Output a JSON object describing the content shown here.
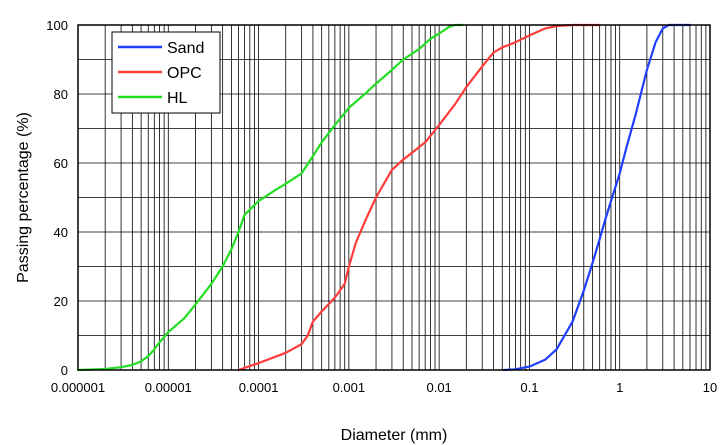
{
  "chart_data": {
    "type": "line",
    "xlabel": "Diameter (mm)",
    "ylabel": "Passing percentage (%)",
    "x_scale": "log",
    "xlim": [
      1e-06,
      10
    ],
    "ylim": [
      0,
      100
    ],
    "x_tick_values": [
      1e-06,
      1e-05,
      0.0001,
      0.001,
      0.01,
      0.1,
      1,
      10
    ],
    "x_tick_labels": [
      "0.000001",
      "0.00001",
      "0.0001",
      "0.001",
      "0.01",
      "0.1",
      "1",
      "10"
    ],
    "y_tick_values": [
      0,
      20,
      40,
      60,
      80,
      100
    ],
    "y_tick_labels": [
      "0",
      "20",
      "40",
      "60",
      "80",
      "100"
    ],
    "grid": true,
    "legend_position": "top-left",
    "series": [
      {
        "name": "Sand",
        "color": "#1f3fff",
        "points": [
          [
            0.052,
            0
          ],
          [
            0.07,
            0.2
          ],
          [
            0.1,
            1
          ],
          [
            0.15,
            3
          ],
          [
            0.2,
            6
          ],
          [
            0.3,
            14
          ],
          [
            0.4,
            23
          ],
          [
            0.5,
            31
          ],
          [
            0.6,
            38
          ],
          [
            0.7,
            44
          ],
          [
            0.8,
            49
          ],
          [
            1.0,
            57
          ],
          [
            1.2,
            65
          ],
          [
            1.5,
            74
          ],
          [
            2.0,
            87
          ],
          [
            2.5,
            95
          ],
          [
            3.0,
            99
          ],
          [
            3.5,
            100
          ],
          [
            6.0,
            100
          ]
        ]
      },
      {
        "name": "OPC",
        "color": "#ff3b3b",
        "points": [
          [
            6e-05,
            0
          ],
          [
            0.0001,
            2
          ],
          [
            0.0002,
            5
          ],
          [
            0.0003,
            7.5
          ],
          [
            0.00035,
            10
          ],
          [
            0.0004,
            14
          ],
          [
            0.0005,
            17
          ],
          [
            0.0007,
            21
          ],
          [
            0.0009,
            25
          ],
          [
            0.001,
            30
          ],
          [
            0.0012,
            37
          ],
          [
            0.0015,
            43
          ],
          [
            0.002,
            50
          ],
          [
            0.003,
            58
          ],
          [
            0.004,
            61
          ],
          [
            0.005,
            63
          ],
          [
            0.007,
            66
          ],
          [
            0.01,
            71
          ],
          [
            0.015,
            77
          ],
          [
            0.02,
            82
          ],
          [
            0.03,
            88
          ],
          [
            0.04,
            92
          ],
          [
            0.05,
            93.5
          ],
          [
            0.07,
            95
          ],
          [
            0.1,
            97
          ],
          [
            0.15,
            99
          ],
          [
            0.2,
            99.7
          ],
          [
            0.3,
            100
          ],
          [
            0.6,
            100
          ]
        ]
      },
      {
        "name": "HL",
        "color": "#22dd22",
        "points": [
          [
            1e-06,
            0
          ],
          [
            2e-06,
            0.3
          ],
          [
            3e-06,
            0.8
          ],
          [
            4e-06,
            1.5
          ],
          [
            5e-06,
            2.5
          ],
          [
            6e-06,
            4
          ],
          [
            7e-06,
            6
          ],
          [
            8e-06,
            8
          ],
          [
            1e-05,
            11
          ],
          [
            1.5e-05,
            15
          ],
          [
            2e-05,
            19
          ],
          [
            3e-05,
            25
          ],
          [
            4e-05,
            30
          ],
          [
            5e-05,
            35
          ],
          [
            6e-05,
            40
          ],
          [
            7e-05,
            45
          ],
          [
            0.0001,
            49
          ],
          [
            0.00015,
            52
          ],
          [
            0.0002,
            54
          ],
          [
            0.0003,
            57
          ],
          [
            0.0004,
            62
          ],
          [
            0.0005,
            66
          ],
          [
            0.0007,
            71
          ],
          [
            0.001,
            76
          ],
          [
            0.0015,
            80
          ],
          [
            0.002,
            83
          ],
          [
            0.003,
            87
          ],
          [
            0.004,
            90
          ],
          [
            0.006,
            93
          ],
          [
            0.008,
            96
          ],
          [
            0.01,
            97.5
          ],
          [
            0.013,
            99.5
          ],
          [
            0.015,
            100
          ],
          [
            0.018,
            100
          ]
        ]
      }
    ]
  }
}
